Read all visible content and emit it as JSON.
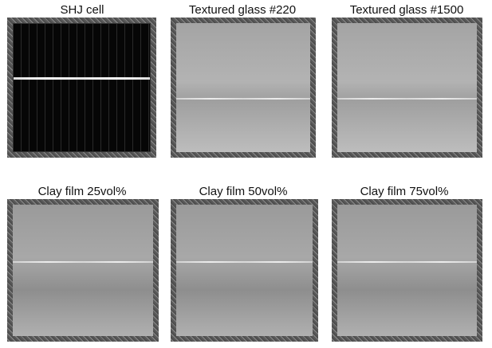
{
  "panels": [
    {
      "label": "SHJ cell",
      "type": "cell"
    },
    {
      "label": "Textured glass #220",
      "type": "gl"
    },
    {
      "label": "Textured glass #1500",
      "type": "gl"
    },
    {
      "label": "Clay film 25vol%",
      "type": "clay"
    },
    {
      "label": "Clay film 50vol%",
      "type": "clay"
    },
    {
      "label": "Clay film 75vol%",
      "type": "clay"
    }
  ]
}
